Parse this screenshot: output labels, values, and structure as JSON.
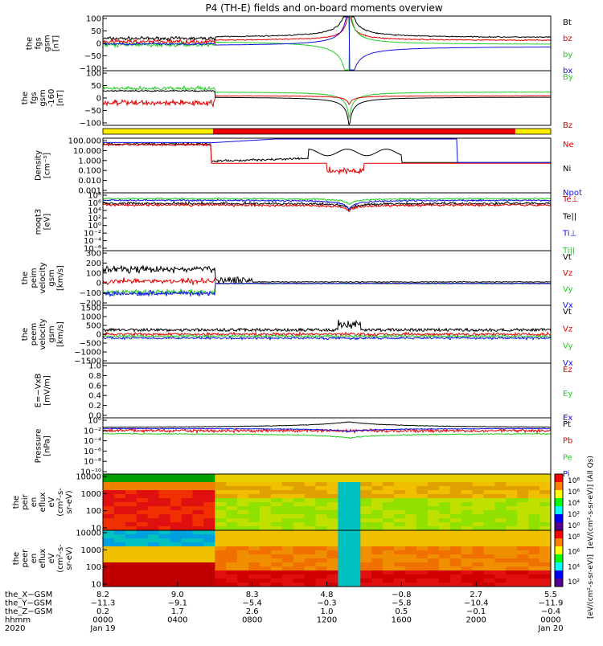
{
  "colors": {
    "black": "#000000",
    "red": "#e00000",
    "green": "#22cc22",
    "blue": "#1010e0",
    "yellow": "#ffee00",
    "bar_red": "#ee0000"
  },
  "chart_data": {
    "type": "line",
    "title": "P4 (TH-E) fields and on-board moments overview",
    "status_bar": {
      "segments": [
        {
          "from_hour": 0.0,
          "to_hour": 5.9,
          "color": "yellow"
        },
        {
          "from_hour": 5.9,
          "to_hour": 22.1,
          "color": "red"
        },
        {
          "from_hour": 22.1,
          "to_hour": 24.0,
          "color": "yellow"
        }
      ]
    },
    "panels": [
      {
        "id": "fgs",
        "ylabel": [
          "the",
          "fgs",
          "gsm",
          "[nT]"
        ],
        "yticks": [
          "100",
          "50",
          "0",
          "−50",
          "−100"
        ],
        "ylim": [
          -100,
          100
        ],
        "legend": [
          {
            "label": "Bt",
            "color": "black"
          },
          {
            "label": "bz",
            "color": "red"
          },
          {
            "label": "by",
            "color": "green"
          },
          {
            "label": "bx",
            "color": "blue"
          }
        ]
      },
      {
        "id": "fgs_dsl",
        "ylabel": [
          "the",
          "fgs",
          "gsm",
          "-160",
          "[nT]"
        ],
        "yticks": [
          "100",
          "50",
          "0",
          "−50",
          "−100"
        ],
        "ylim": [
          -130,
          100
        ],
        "legend": [
          {
            "label": "By",
            "color": "green"
          },
          {
            "label": "Bz",
            "color": "red"
          }
        ]
      },
      {
        "id": "density",
        "ylabel": [
          "Density",
          "[cm⁻³]"
        ],
        "yticks": [
          "100.000",
          "10.000",
          "1.000",
          "0.100",
          "0.010",
          "0.001"
        ],
        "ylim": [
          0.001,
          100
        ],
        "legend": [
          {
            "label": "Ne",
            "color": "red"
          },
          {
            "label": "Ni",
            "color": "black"
          },
          {
            "label": "Npot",
            "color": "blue"
          }
        ]
      },
      {
        "id": "temperature",
        "ylabel": [
          "moqt3",
          "[eV]"
        ],
        "yticks": [
          "10⁸",
          "10⁶",
          "10⁴",
          "10²",
          "10⁰",
          "10⁻²",
          "10⁻⁴",
          "10⁻⁶"
        ],
        "legend": [
          {
            "label": "Te⊥",
            "color": "red"
          },
          {
            "label": "Te||",
            "color": "black"
          },
          {
            "label": "Ti⊥",
            "color": "blue"
          },
          {
            "label": "Ti||",
            "color": "green"
          }
        ]
      },
      {
        "id": "peim_velocity",
        "ylabel": [
          "the",
          "peim",
          "velocity",
          "gsm",
          "[km/s]"
        ],
        "yticks": [
          "300",
          "200",
          "100",
          "0",
          "−100",
          "−200"
        ],
        "ylim": [
          -200,
          300
        ],
        "legend": [
          {
            "label": "Vt",
            "color": "black"
          },
          {
            "label": "Vz",
            "color": "red"
          },
          {
            "label": "Vy",
            "color": "green"
          },
          {
            "label": "Vx",
            "color": "blue"
          }
        ]
      },
      {
        "id": "peem_velocity",
        "ylabel": [
          "the",
          "peem",
          "velocity",
          "gsm",
          "[km/s]"
        ],
        "yticks": [
          "1500",
          "1000",
          "500",
          "0",
          "−500",
          "−1000",
          "−1500"
        ],
        "ylim": [
          -1500,
          1500
        ],
        "legend": [
          {
            "label": "Vt",
            "color": "black"
          },
          {
            "label": "Vz",
            "color": "red"
          },
          {
            "label": "Vy",
            "color": "green"
          },
          {
            "label": "Vx",
            "color": "blue"
          }
        ]
      },
      {
        "id": "efield",
        "ylabel": [
          "E=−VxB",
          "[mV/m]"
        ],
        "yticks": [
          "1.0",
          "0.8",
          "0.6",
          "0.4",
          "0.2",
          "0.0"
        ],
        "ylim": [
          0,
          1
        ],
        "legend": [
          {
            "label": "Ez",
            "color": "red"
          },
          {
            "label": "Ey",
            "color": "green"
          },
          {
            "label": "Ex",
            "color": "blue"
          }
        ]
      },
      {
        "id": "pressure",
        "ylabel": [
          "Pressure",
          "[nPa]"
        ],
        "yticks": [
          "10⁰",
          "10⁻²",
          "10⁻⁴",
          "10⁻⁶",
          "10⁻⁸",
          "10⁻¹⁰"
        ],
        "legend": [
          {
            "label": "Pt",
            "color": "black"
          },
          {
            "label": "Pb",
            "color": "red"
          },
          {
            "label": "Pe",
            "color": "green"
          },
          {
            "label": "Pi",
            "color": "blue"
          }
        ]
      },
      {
        "id": "peir_spectrogram",
        "ylabel": [
          "the",
          "peir",
          "en",
          "eflux",
          "eV",
          "(cm²-s-",
          "sr-eV)"
        ],
        "yticks": [
          "10000",
          "1000",
          "100",
          "10"
        ]
      },
      {
        "id": "peer_spectrogram",
        "ylabel": [
          "the",
          "peer",
          "en",
          "eflux",
          "eV",
          "(cm²-s-",
          "sr-eV)"
        ],
        "yticks": [
          "10000",
          "1000",
          "100",
          "10"
        ]
      }
    ],
    "colorbar": {
      "ticks": [
        "10⁸",
        "10⁶",
        "10⁴",
        "10²",
        "10⁰"
      ],
      "ticks2": [
        "10⁸",
        "10⁶",
        "10⁴",
        "10²"
      ],
      "label_right": "[eV/(cm²-s-sr-eV)] (All Qs)",
      "label_bottom": "[eV/(cm²-s-sr-eV)]"
    },
    "x_axis": {
      "row_labels": [
        "the_X−GSM",
        "the_Y−GSM",
        "the_Z−GSM",
        "hhmm",
        "2020"
      ],
      "ticks": [
        {
          "hour": 0,
          "values": [
            "8.2",
            "−11.3",
            "0.2",
            "0000",
            "Jan 19"
          ]
        },
        {
          "hour": 4,
          "values": [
            "9.0",
            "−9.1",
            "1.7",
            "0400",
            ""
          ]
        },
        {
          "hour": 8,
          "values": [
            "8.3",
            "−5.4",
            "2.6",
            "0800",
            ""
          ]
        },
        {
          "hour": 12,
          "values": [
            "4.8",
            "−0.3",
            "1.0",
            "1200",
            ""
          ]
        },
        {
          "hour": 16,
          "values": [
            "−0.8",
            "−5.8",
            "0.5",
            "1600",
            ""
          ]
        },
        {
          "hour": 20,
          "values": [
            "2.7",
            "−10.4",
            "−0.1",
            "2000",
            ""
          ]
        },
        {
          "hour": 24,
          "values": [
            "5.5",
            "−11.9",
            "−0.4",
            "0000",
            "Jan 20"
          ]
        }
      ]
    }
  }
}
